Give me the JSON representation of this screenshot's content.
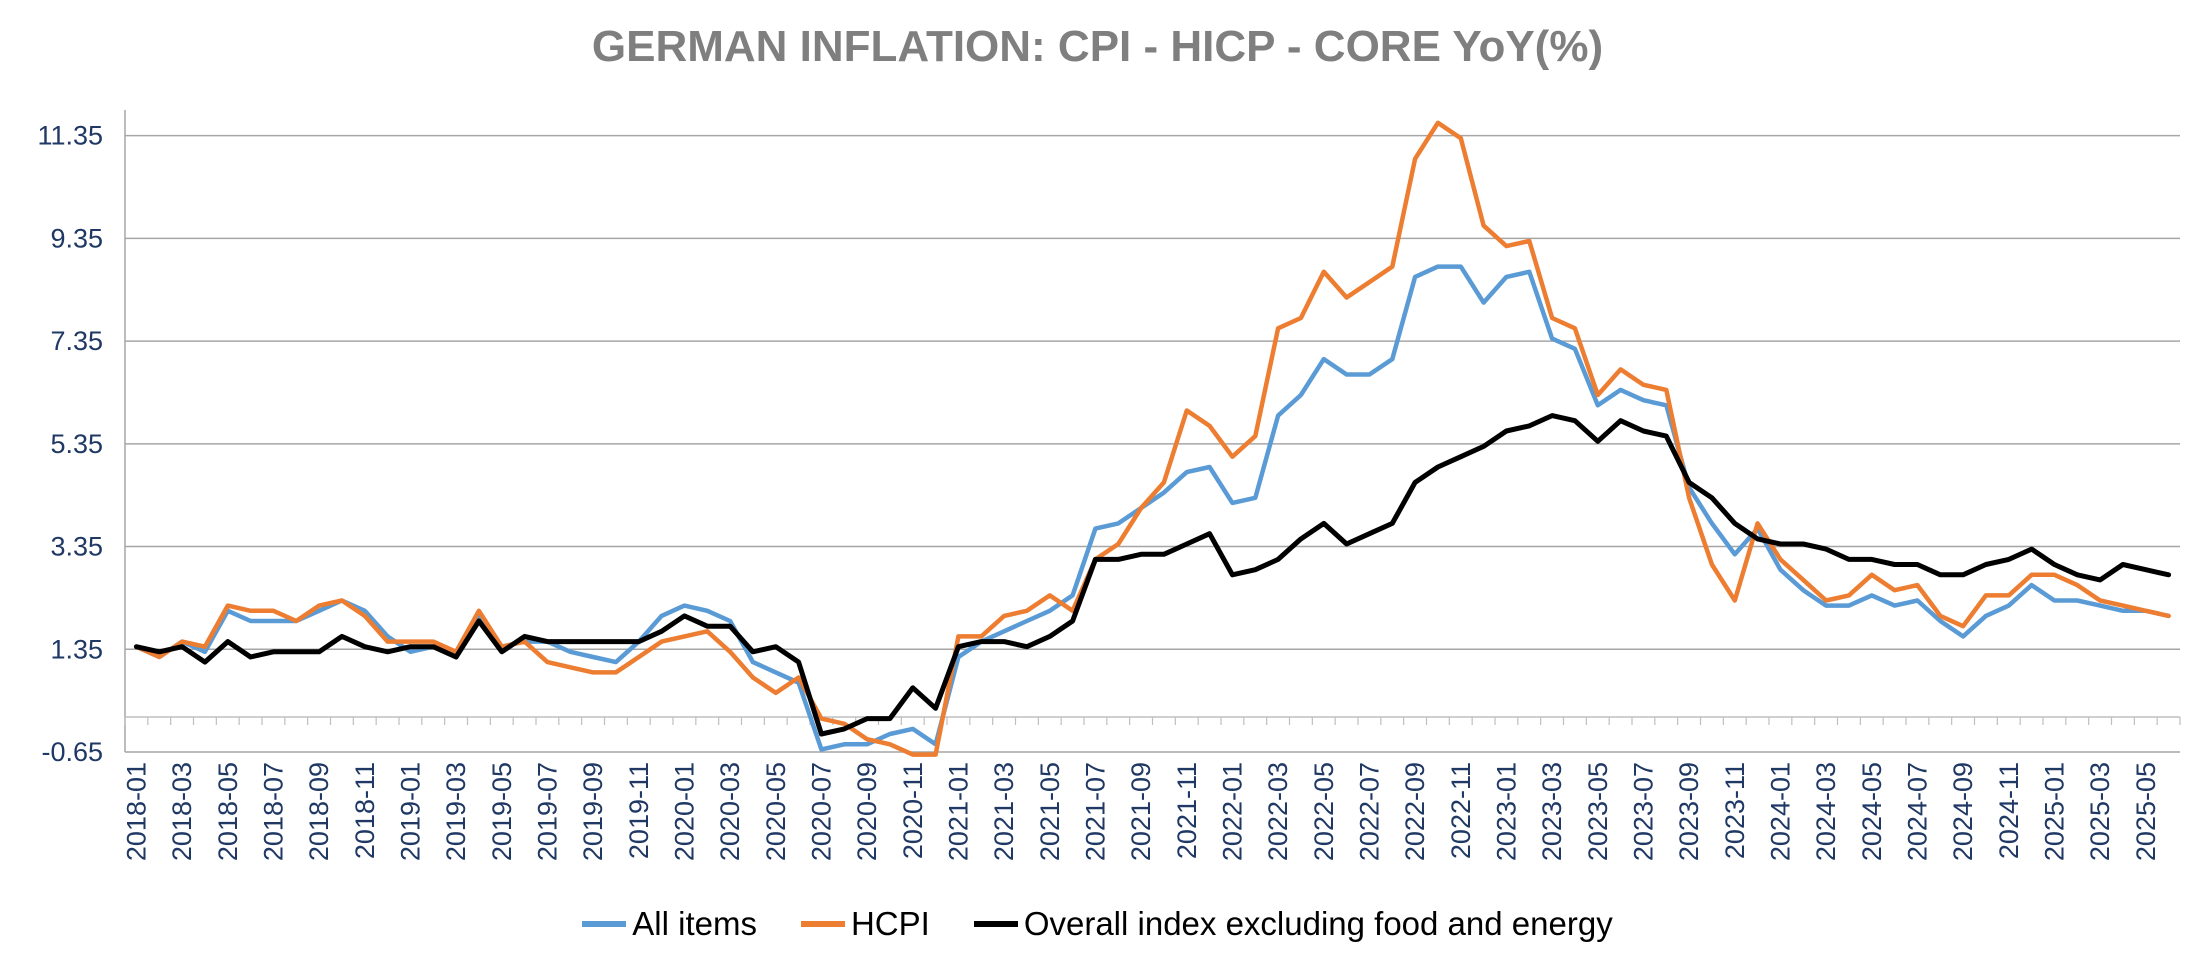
{
  "chart_data": {
    "type": "line",
    "title": "GERMAN INFLATION: CPI - HICP - CORE YoY(%)",
    "xlabel": "",
    "ylabel": "",
    "ylim": [
      -0.65,
      11.85
    ],
    "yticks": [
      -0.65,
      1.35,
      3.35,
      5.35,
      7.35,
      9.35,
      11.35
    ],
    "ytick_labels": [
      "-0.65",
      "1.35",
      "3.35",
      "5.35",
      "7.35",
      "9.35",
      "11.35"
    ],
    "x": [
      "2018-01",
      "2018-02",
      "2018-03",
      "2018-04",
      "2018-05",
      "2018-06",
      "2018-07",
      "2018-08",
      "2018-09",
      "2018-10",
      "2018-11",
      "2018-12",
      "2019-01",
      "2019-02",
      "2019-03",
      "2019-04",
      "2019-05",
      "2019-06",
      "2019-07",
      "2019-08",
      "2019-09",
      "2019-10",
      "2019-11",
      "2019-12",
      "2020-01",
      "2020-02",
      "2020-03",
      "2020-04",
      "2020-05",
      "2020-06",
      "2020-07",
      "2020-08",
      "2020-09",
      "2020-10",
      "2020-11",
      "2020-12",
      "2021-01",
      "2021-02",
      "2021-03",
      "2021-04",
      "2021-05",
      "2021-06",
      "2021-07",
      "2021-08",
      "2021-09",
      "2021-10",
      "2021-11",
      "2021-12",
      "2022-01",
      "2022-02",
      "2022-03",
      "2022-04",
      "2022-05",
      "2022-06",
      "2022-07",
      "2022-08",
      "2022-09",
      "2022-10",
      "2022-11",
      "2022-12",
      "2023-01",
      "2023-02",
      "2023-03",
      "2023-04",
      "2023-05",
      "2023-06",
      "2023-07",
      "2023-08",
      "2023-09",
      "2023-10",
      "2023-11",
      "2023-12",
      "2024-01",
      "2024-02",
      "2024-03",
      "2024-04",
      "2024-05",
      "2024-06",
      "2024-07",
      "2024-08",
      "2024-09",
      "2024-10",
      "2024-11",
      "2024-12",
      "2025-01",
      "2025-02",
      "2025-03",
      "2025-04",
      "2025-05",
      "2025-06"
    ],
    "x_tick_labels": [
      "2018-01",
      "2018-03",
      "2018-05",
      "2018-07",
      "2018-09",
      "2018-11",
      "2019-01",
      "2019-03",
      "2019-05",
      "2019-07",
      "2019-09",
      "2019-11",
      "2020-01",
      "2020-03",
      "2020-05",
      "2020-07",
      "2020-09",
      "2020-11",
      "2021-01",
      "2021-03",
      "2021-05",
      "2021-07",
      "2021-09",
      "2021-11",
      "2022-01",
      "2022-03",
      "2022-05",
      "2022-07",
      "2022-09",
      "2022-11",
      "2023-01",
      "2023-03",
      "2023-05",
      "2023-07",
      "2023-09",
      "2023-11",
      "2024-01",
      "2024-03",
      "2024-05",
      "2024-07",
      "2024-09",
      "2024-11",
      "2025-01",
      "2025-03",
      "2025-05"
    ],
    "grid": "horizontal",
    "legend_position": "bottom",
    "series": [
      {
        "name": "All items",
        "color": "#5b9bd5",
        "values": [
          1.4,
          1.2,
          1.5,
          1.3,
          2.1,
          1.9,
          1.9,
          1.9,
          2.1,
          2.3,
          2.1,
          1.6,
          1.3,
          1.4,
          1.2,
          2.0,
          1.4,
          1.5,
          1.5,
          1.3,
          1.2,
          1.1,
          1.5,
          2.0,
          2.2,
          2.1,
          1.9,
          1.1,
          0.9,
          0.7,
          -0.6,
          -0.5,
          -0.5,
          -0.3,
          -0.2,
          -0.5,
          1.2,
          1.5,
          1.7,
          1.9,
          2.1,
          2.4,
          3.7,
          3.8,
          4.1,
          4.4,
          4.8,
          4.9,
          4.2,
          4.3,
          5.9,
          6.3,
          7.0,
          6.7,
          6.7,
          7.0,
          8.6,
          8.8,
          8.8,
          8.1,
          8.6,
          8.7,
          7.4,
          7.2,
          6.1,
          6.4,
          6.2,
          6.1,
          4.5,
          3.8,
          3.2,
          3.7,
          2.9,
          2.5,
          2.2,
          2.2,
          2.4,
          2.2,
          2.3,
          1.9,
          1.6,
          2.0,
          2.2,
          2.6,
          2.3,
          2.3,
          2.2,
          2.1,
          2.1,
          2.0
        ]
      },
      {
        "name": "HCPI",
        "color": "#ed7d31",
        "values": [
          1.4,
          1.2,
          1.5,
          1.4,
          2.2,
          2.1,
          2.1,
          1.9,
          2.2,
          2.3,
          2.0,
          1.5,
          1.5,
          1.5,
          1.3,
          2.1,
          1.4,
          1.5,
          1.1,
          1.0,
          0.9,
          0.9,
          1.2,
          1.5,
          1.6,
          1.7,
          1.3,
          0.8,
          0.5,
          0.8,
          0.0,
          -0.1,
          -0.4,
          -0.5,
          -0.7,
          -0.7,
          1.6,
          1.6,
          2.0,
          2.1,
          2.4,
          2.1,
          3.1,
          3.4,
          4.1,
          4.6,
          6.0,
          5.7,
          5.1,
          5.5,
          7.6,
          7.8,
          8.7,
          8.2,
          8.5,
          8.8,
          10.9,
          11.6,
          11.3,
          9.6,
          9.2,
          9.3,
          7.8,
          7.6,
          6.3,
          6.8,
          6.5,
          6.4,
          4.3,
          3.0,
          2.3,
          3.8,
          3.1,
          2.7,
          2.3,
          2.4,
          2.8,
          2.5,
          2.6,
          2.0,
          1.8,
          2.4,
          2.4,
          2.8,
          2.8,
          2.6,
          2.3,
          2.2,
          2.1,
          2.0
        ]
      },
      {
        "name": "Overall index excluding food and energy",
        "color": "#000000",
        "values": [
          1.4,
          1.3,
          1.4,
          1.1,
          1.5,
          1.2,
          1.3,
          1.3,
          1.3,
          1.6,
          1.4,
          1.3,
          1.4,
          1.4,
          1.2,
          1.9,
          1.3,
          1.6,
          1.5,
          1.5,
          1.5,
          1.5,
          1.5,
          1.7,
          2.0,
          1.8,
          1.8,
          1.3,
          1.4,
          1.1,
          -0.3,
          -0.2,
          0.0,
          0.0,
          0.6,
          0.2,
          1.4,
          1.5,
          1.5,
          1.4,
          1.6,
          1.9,
          3.1,
          3.1,
          3.2,
          3.2,
          3.4,
          3.6,
          2.8,
          2.9,
          3.1,
          3.5,
          3.8,
          3.4,
          3.6,
          3.8,
          4.6,
          4.9,
          5.1,
          5.3,
          5.6,
          5.7,
          5.9,
          5.8,
          5.4,
          5.8,
          5.6,
          5.5,
          4.6,
          4.3,
          3.8,
          3.5,
          3.4,
          3.4,
          3.3,
          3.1,
          3.1,
          3.0,
          3.0,
          2.8,
          2.8,
          3.0,
          3.1,
          3.3,
          3.0,
          2.8,
          2.7,
          3.0,
          2.9,
          2.8
        ]
      }
    ]
  }
}
